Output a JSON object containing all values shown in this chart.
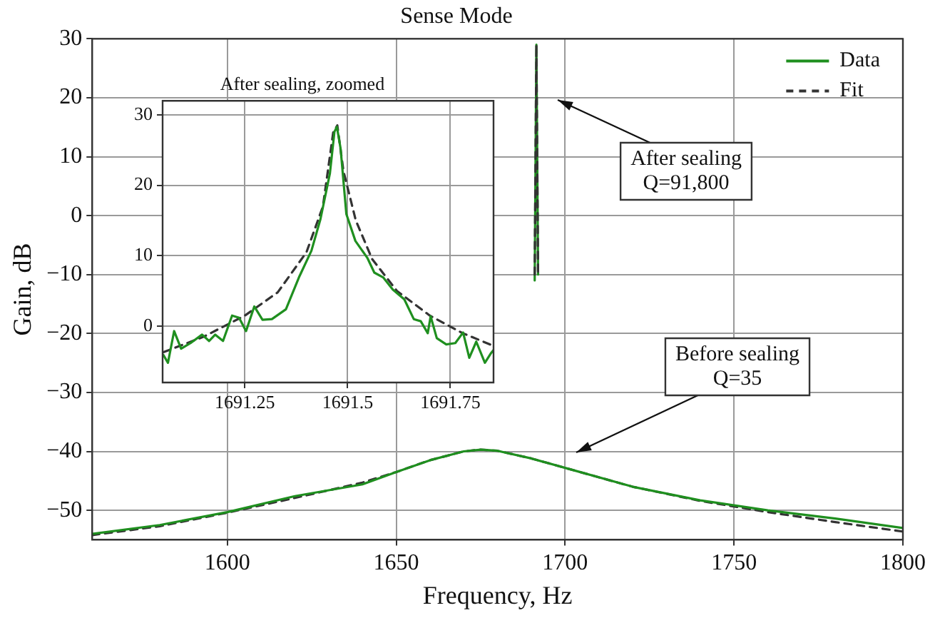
{
  "chart_data": [
    {
      "type": "line",
      "title": "Sense Mode",
      "xlabel": "Frequency, Hz",
      "ylabel": "Gain, dB",
      "xlim": [
        1560,
        1800
      ],
      "xticks": [
        1600,
        1650,
        1700,
        1750,
        1800
      ],
      "ylim": [
        -55,
        30
      ],
      "yticks": [
        -50,
        -40,
        -30,
        -20,
        -10,
        0,
        10,
        20,
        30
      ],
      "grid": true,
      "legend": "top right",
      "marker": "none",
      "annotations": [
        "After sealing\nQ=91,800",
        "Before sealing\nQ=35"
      ],
      "series": [
        {
          "name": "Data",
          "color": "#1f8f1f",
          "line_style": "solid",
          "x": [
            1560,
            1580,
            1600,
            1620,
            1640,
            1650,
            1660,
            1670,
            1675,
            1680,
            1690,
            1700,
            1720,
            1740,
            1760,
            1780,
            1800
          ],
          "values": [
            -54,
            -52.5,
            -50.3,
            -47.6,
            -45.6,
            -43.5,
            -41.5,
            -40,
            -39.7,
            -39.9,
            -41.2,
            -42.8,
            -46,
            -48.3,
            -50,
            -51.4,
            -53
          ]
        },
        {
          "name": "Fit",
          "color": "#333333",
          "line_style": "dashed",
          "x": [
            1560,
            1580,
            1600,
            1620,
            1640,
            1650,
            1660,
            1670,
            1675,
            1680,
            1690,
            1700,
            1720,
            1740,
            1760,
            1780,
            1800
          ],
          "values": [
            -54.2,
            -52.7,
            -50.4,
            -47.9,
            -45.3,
            -43.5,
            -41.5,
            -40,
            -39.7,
            -39.9,
            -41.2,
            -42.8,
            -46,
            -48.4,
            -50.3,
            -52,
            -53.6
          ]
        },
        {
          "color": "#333333",
          "line_style": "dashed",
          "x": [
            1691.0,
            1691.5,
            1692.0
          ],
          "values": [
            -10,
            29,
            -10
          ]
        },
        {
          "color": "#1f8f1f",
          "line_style": "solid",
          "x": [
            1691.0,
            1691.5,
            1692.0
          ],
          "values": [
            -11,
            29,
            -10
          ]
        }
      ]
    },
    {
      "type": "line",
      "title": "After sealing, zoomed",
      "xlim": [
        1691.05,
        1691.855
      ],
      "xticks": [
        1691.25,
        1691.5,
        1691.75
      ],
      "ylim": [
        -8,
        32
      ],
      "yticks": [
        0,
        10,
        20,
        30
      ],
      "grid": true,
      "marker": "none",
      "series": [
        {
          "color": "#1f8f1f",
          "line_style": "solid",
          "x": [
            1691.052,
            1691.063,
            1691.078,
            1691.095,
            1691.118,
            1691.146,
            1691.163,
            1691.178,
            1691.197,
            1691.219,
            1691.236,
            1691.253,
            1691.273,
            1691.293,
            1691.316,
            1691.35,
            1691.383,
            1691.412,
            1691.434,
            1691.457,
            1691.468,
            1691.474,
            1691.483,
            1691.497,
            1691.519,
            1691.548,
            1691.565,
            1691.587,
            1691.61,
            1691.638,
            1691.661,
            1691.678,
            1691.695,
            1691.702,
            1691.717,
            1691.74,
            1691.762,
            1691.781,
            1691.796,
            1691.813,
            1691.834,
            1691.848,
            1691.855
          ],
          "values": [
            -4.1,
            -5.2,
            -0.7,
            -3.2,
            -2.4,
            -1.2,
            -2.1,
            -1.2,
            -2.1,
            1.5,
            1.2,
            -0.7,
            2.8,
            0.9,
            1,
            2.4,
            7.1,
            10.7,
            15.2,
            21.7,
            27.6,
            28.3,
            25.2,
            15.9,
            12.1,
            9.7,
            7.6,
            6.9,
            5.2,
            3.8,
            1,
            0.7,
            -1,
            1.4,
            -1.7,
            -2.6,
            -2.4,
            -0.9,
            -4.5,
            -2.2,
            -5.2,
            -3.9,
            -3.4
          ]
        },
        {
          "color": "#333333",
          "line_style": "dashed",
          "x": [
            1691.052,
            1691.15,
            1691.25,
            1691.33,
            1691.4,
            1691.44,
            1691.465,
            1691.475,
            1691.49,
            1691.52,
            1691.56,
            1691.62,
            1691.7,
            1691.78,
            1691.855
          ],
          "values": [
            -3.7,
            -1.5,
            1.5,
            4.8,
            10.5,
            17,
            27.5,
            28.5,
            22,
            15,
            9.5,
            5,
            1.5,
            -1,
            -2.8
          ]
        }
      ]
    }
  ]
}
